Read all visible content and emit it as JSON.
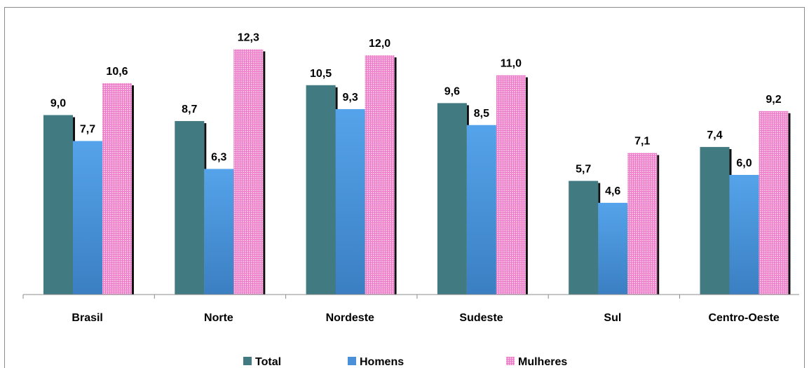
{
  "chart_data": {
    "type": "bar",
    "categories": [
      "Brasil",
      "Norte",
      "Nordeste",
      "Sudeste",
      "Sul",
      "Centro-Oeste"
    ],
    "series": [
      {
        "name": "Total",
        "values": [
          9.0,
          8.7,
          10.5,
          9.6,
          5.7,
          7.4
        ],
        "value_labels": [
          "9,0",
          "8,7",
          "10,5",
          "9,6",
          "5,7",
          "7,4"
        ],
        "color": "#417A80"
      },
      {
        "name": "Homens",
        "values": [
          7.7,
          6.3,
          9.3,
          8.5,
          4.6,
          6.0
        ],
        "value_labels": [
          "7,7",
          "6,3",
          "9,3",
          "8,5",
          "4,6",
          "6,0"
        ],
        "color": "#4A90D9"
      },
      {
        "name": "Mulheres",
        "values": [
          10.6,
          12.3,
          12.0,
          11.0,
          7.1,
          9.2
        ],
        "value_labels": [
          "10,6",
          "12,3",
          "12,0",
          "11,0",
          "7,1",
          "9,2"
        ],
        "color": "#F4A6D7"
      }
    ],
    "ylim": [
      0,
      13.5
    ],
    "grid": false,
    "legend": "bottom",
    "title": "",
    "xlabel": "",
    "ylabel": ""
  }
}
